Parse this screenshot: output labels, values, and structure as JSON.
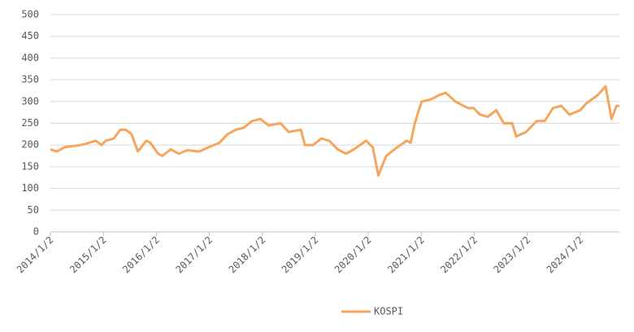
{
  "chart_data": {
    "type": "line",
    "x": [
      "2014/1/2",
      "2014/2/15",
      "2014/4/10",
      "2014/8/2",
      "2014/9/25",
      "2014/11/10",
      "2014/12/20",
      "2015/1/18",
      "2015/3/15",
      "2015/4/28",
      "2015/6/5",
      "2015/7/15",
      "2015/8/28",
      "2015/10/25",
      "2015/11/22",
      "2016/1/15",
      "2016/2/12",
      "2016/4/10",
      "2016/6/5",
      "2016/8/2",
      "2016/10/25",
      "2016/12/28",
      "2017/3/12",
      "2017/5/8",
      "2017/7/2",
      "2017/8/28",
      "2017/10/22",
      "2017/12/20",
      "2018/2/15",
      "2018/5/8",
      "2018/7/2",
      "2018/9/25",
      "2018/10/22",
      "2018/12/18",
      "2019/2/12",
      "2019/4/8",
      "2019/6/5",
      "2019/8/1",
      "2019/9/25",
      "2019/12/18",
      "2020/2/2",
      "2020/3/12",
      "2020/5/5",
      "2020/7/1",
      "2020/9/22",
      "2020/10/20",
      "2020/11/18",
      "2021/1/4",
      "2021/3/10",
      "2021/5/5",
      "2021/6/20",
      "2021/8/25",
      "2021/11/18",
      "2021/12/28",
      "2022/2/10",
      "2022/4/5",
      "2022/6/2",
      "2022/7/25",
      "2022/9/20",
      "2022/10/18",
      "2022/12/25",
      "2023/3/8",
      "2023/5/2",
      "2023/6/28",
      "2023/8/25",
      "2023/10/20",
      "2024/1/2",
      "2024/2/10",
      "2024/5/2",
      "2024/6/25",
      "2024/8/5",
      "2024/9/8",
      "2024/9/28"
    ],
    "series": [
      {
        "name": "KOSPI",
        "color": "#f5a55c",
        "values": [
          190,
          185,
          195,
          200,
          205,
          210,
          200,
          210,
          215,
          235,
          235,
          225,
          185,
          210,
          205,
          180,
          175,
          190,
          180,
          188,
          185,
          195,
          205,
          225,
          235,
          240,
          255,
          260,
          245,
          250,
          230,
          235,
          200,
          200,
          215,
          210,
          190,
          180,
          190,
          210,
          195,
          130,
          175,
          190,
          210,
          205,
          250,
          300,
          305,
          315,
          320,
          300,
          285,
          285,
          270,
          265,
          280,
          250,
          250,
          220,
          230,
          255,
          255,
          285,
          290,
          270,
          280,
          295,
          315,
          335,
          260,
          290,
          290
        ]
      }
    ],
    "xlim": [
      "2014/1/2",
      "2024/9/28"
    ],
    "xticks": [
      "2014/1/2",
      "2015/1/2",
      "2016/1/2",
      "2017/1/2",
      "2018/1/2",
      "2019/1/2",
      "2020/1/2",
      "2021/1/2",
      "2022/1/2",
      "2023/1/2",
      "2024/1/2"
    ],
    "ylim": [
      0,
      500
    ],
    "yticks": [
      0,
      50,
      100,
      150,
      200,
      250,
      300,
      350,
      400,
      450,
      500
    ],
    "grid": true,
    "legend": "bottom"
  }
}
